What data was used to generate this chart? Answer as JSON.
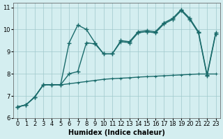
{
  "xlabel": "Humidex (Indice chaleur)",
  "background_color": "#d4eef0",
  "line_color": "#1a6b6b",
  "xlim": [
    -0.5,
    23.5
  ],
  "ylim": [
    6,
    11.2
  ],
  "yticks": [
    6,
    7,
    8,
    9,
    10,
    11
  ],
  "xticks": [
    0,
    1,
    2,
    3,
    4,
    5,
    6,
    7,
    8,
    9,
    10,
    11,
    12,
    13,
    14,
    15,
    16,
    17,
    18,
    19,
    20,
    21,
    22,
    23
  ],
  "line_flat_x": [
    0,
    1,
    2,
    3,
    4,
    5,
    6,
    7,
    8,
    9,
    10,
    11,
    12,
    13,
    14,
    15,
    16,
    17,
    18,
    19,
    20,
    21,
    22,
    23
  ],
  "line_flat_y": [
    6.5,
    6.6,
    6.95,
    7.5,
    7.5,
    7.5,
    7.55,
    7.6,
    7.65,
    7.7,
    7.75,
    7.78,
    7.8,
    7.82,
    7.85,
    7.87,
    7.89,
    7.91,
    7.93,
    7.95,
    7.97,
    7.99,
    7.99,
    7.99
  ],
  "line_main_x": [
    0,
    1,
    2,
    3,
    4,
    5,
    6,
    7,
    8,
    9,
    10,
    11,
    12,
    13,
    14,
    15,
    16,
    17,
    18,
    19,
    20,
    21,
    22,
    23
  ],
  "line_main_y": [
    6.5,
    6.6,
    6.95,
    7.5,
    7.5,
    7.5,
    9.4,
    10.2,
    10.0,
    9.4,
    8.9,
    8.9,
    9.5,
    9.45,
    9.9,
    9.95,
    9.9,
    10.3,
    10.5,
    10.9,
    10.5,
    9.9,
    7.95,
    9.85
  ],
  "line_c_x": [
    0,
    1,
    2,
    3,
    4,
    5,
    6,
    7,
    8,
    9,
    10,
    11,
    12,
    13,
    14,
    15,
    16,
    17,
    18,
    19,
    20,
    21,
    22,
    23
  ],
  "line_c_y": [
    6.5,
    6.6,
    6.95,
    7.5,
    7.5,
    7.5,
    8.0,
    8.1,
    9.4,
    9.35,
    8.9,
    8.9,
    9.45,
    9.4,
    9.85,
    9.9,
    9.85,
    10.25,
    10.45,
    10.85,
    10.45,
    9.85,
    7.9,
    9.8
  ]
}
